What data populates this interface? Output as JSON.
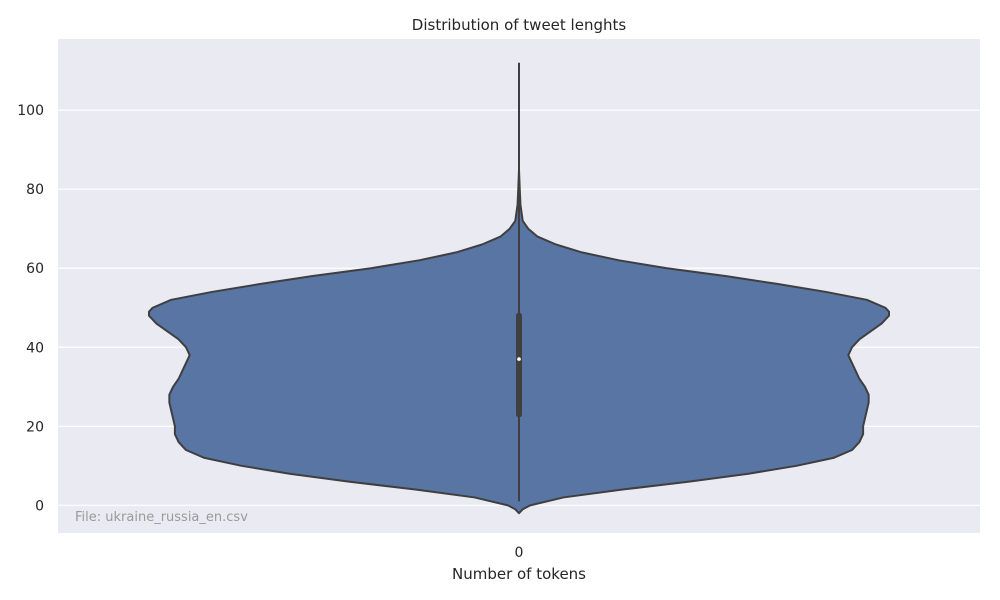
{
  "chart_data": {
    "type": "violin",
    "title": "Distribution of tweet lenghts",
    "xlabel": "Number of tokens",
    "ylabel": "",
    "categories": [
      "0"
    ],
    "ylim": [
      -7,
      118
    ],
    "yticks": [
      0,
      20,
      40,
      60,
      80,
      100
    ],
    "grid": true,
    "annotation": "File: ukraine_russia_en.csv",
    "colors": {
      "background": "#eaeaf2",
      "grid": "#ffffff",
      "violin_fill": "#5975a4",
      "violin_edge": "#3f3f3f",
      "box": "#3f3f3f",
      "median": "#ffffff"
    },
    "box": {
      "q1": 23,
      "median": 37,
      "q3": 48,
      "whisker_low": 1,
      "whisker_high": 112
    },
    "density_profile": [
      [
        -2,
        0.0
      ],
      [
        -1,
        0.01
      ],
      [
        0,
        0.03
      ],
      [
        2,
        0.12
      ],
      [
        4,
        0.28
      ],
      [
        6,
        0.46
      ],
      [
        8,
        0.62
      ],
      [
        10,
        0.75
      ],
      [
        12,
        0.85
      ],
      [
        14,
        0.9
      ],
      [
        16,
        0.92
      ],
      [
        18,
        0.93
      ],
      [
        20,
        0.93
      ],
      [
        22,
        0.935
      ],
      [
        24,
        0.94
      ],
      [
        26,
        0.945
      ],
      [
        28,
        0.945
      ],
      [
        30,
        0.935
      ],
      [
        32,
        0.92
      ],
      [
        34,
        0.91
      ],
      [
        36,
        0.9
      ],
      [
        38,
        0.89
      ],
      [
        40,
        0.9
      ],
      [
        42,
        0.92
      ],
      [
        44,
        0.95
      ],
      [
        46,
        0.98
      ],
      [
        48,
        1.0
      ],
      [
        49,
        1.0
      ],
      [
        50,
        0.99
      ],
      [
        52,
        0.94
      ],
      [
        54,
        0.83
      ],
      [
        56,
        0.7
      ],
      [
        58,
        0.56
      ],
      [
        60,
        0.4
      ],
      [
        62,
        0.27
      ],
      [
        64,
        0.17
      ],
      [
        66,
        0.1
      ],
      [
        68,
        0.05
      ],
      [
        70,
        0.025
      ],
      [
        72,
        0.01
      ],
      [
        76,
        0.004
      ],
      [
        80,
        0.002
      ],
      [
        85,
        0.0
      ]
    ]
  }
}
